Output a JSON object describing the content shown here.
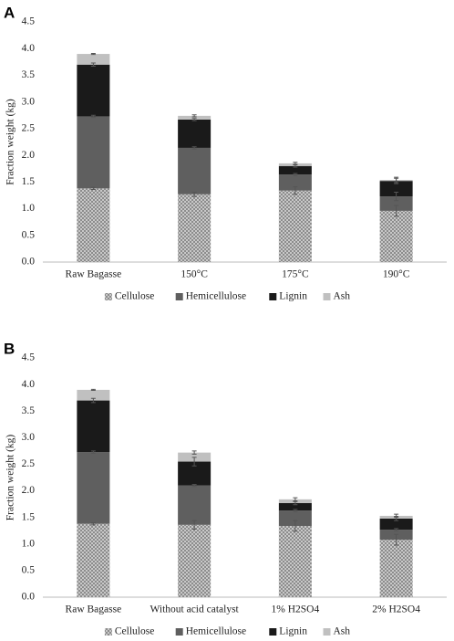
{
  "chart_data": [
    {
      "type": "stacked_bar",
      "panel_label": "A",
      "y_label": "Fraction weight (kg)",
      "categories": [
        "Raw Bagasse",
        "150°C",
        "175°C",
        "190°C"
      ],
      "series": [
        {
          "name": "Cellulose",
          "color": "#a6a6a6",
          "values": [
            1.38,
            1.27,
            1.34,
            0.96
          ],
          "errors": [
            0.02,
            0.04,
            0.07,
            0.1
          ]
        },
        {
          "name": "Hemicellulose",
          "color": "#5f5f5f",
          "values": [
            1.35,
            0.87,
            0.3,
            0.27
          ],
          "errors": [
            0.02,
            0.02,
            0.02,
            0.08
          ]
        },
        {
          "name": "Lignin",
          "color": "#1a1a1a",
          "values": [
            0.97,
            0.53,
            0.16,
            0.29
          ],
          "errors": [
            0.03,
            0.02,
            0.02,
            0.05
          ]
        },
        {
          "name": "Ash",
          "color": "#c0c0c0",
          "values": [
            0.2,
            0.07,
            0.05,
            0.02
          ],
          "errors": [
            0.01,
            0.02,
            0.02,
            0.05
          ]
        }
      ],
      "ylim": [
        0,
        4.5
      ],
      "yticks": [
        {
          "value": 0,
          "label": "0.0"
        },
        0.5,
        {
          "value": 1,
          "label": "1.0"
        },
        1.5,
        {
          "value": 2,
          "label": "2.0"
        },
        2.5,
        {
          "value": 3,
          "label": "3.0"
        },
        3.5,
        {
          "value": 4,
          "label": "4.0"
        },
        4.5
      ],
      "legend": "bottom"
    },
    {
      "type": "stacked_bar",
      "panel_label": "B",
      "y_label": "Fraction weight (kg)",
      "categories": [
        "Raw Bagasse",
        "Without acid catalyst",
        "1% H2SO4",
        "2% H2SO4"
      ],
      "series": [
        {
          "name": "Cellulose",
          "color": "#a6a6a6",
          "values": [
            1.38,
            1.36,
            1.34,
            1.08
          ],
          "errors": [
            0.02,
            0.08,
            0.1,
            0.1
          ]
        },
        {
          "name": "Hemicellulose",
          "color": "#5f5f5f",
          "values": [
            1.35,
            0.74,
            0.29,
            0.19
          ],
          "errors": [
            0.02,
            0.02,
            0.02,
            0.02
          ]
        },
        {
          "name": "Lignin",
          "color": "#1a1a1a",
          "values": [
            0.97,
            0.45,
            0.14,
            0.21
          ],
          "errors": [
            0.04,
            0.08,
            0.03,
            0.04
          ]
        },
        {
          "name": "Ash",
          "color": "#c0c0c0",
          "values": [
            0.2,
            0.17,
            0.07,
            0.05
          ],
          "errors": [
            0.01,
            0.03,
            0.03,
            0.03
          ]
        }
      ],
      "ylim": [
        0,
        4.5
      ],
      "yticks": [
        {
          "value": 0,
          "label": "0.0"
        },
        0.5,
        {
          "value": 1,
          "label": "1.0"
        },
        1.5,
        {
          "value": 2,
          "label": "2.0"
        },
        2.5,
        {
          "value": 3,
          "label": "3.0"
        },
        3.5,
        {
          "value": 4,
          "label": "4.0"
        },
        4.5
      ],
      "legend": "bottom"
    }
  ]
}
